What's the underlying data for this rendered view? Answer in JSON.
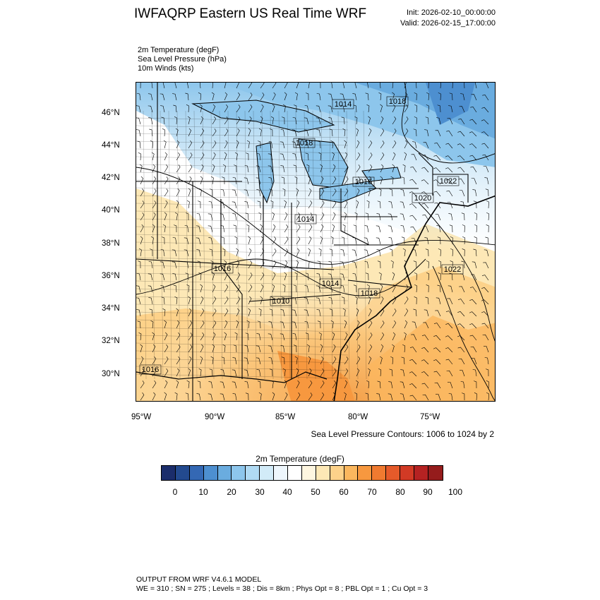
{
  "header": {
    "title": "IWFAQRP Eastern US Real Time WRF",
    "init": "Init: 2026-02-10_00:00:00",
    "valid": "Valid: 2026-02-15_17:00:00"
  },
  "fields": [
    "2m Temperature   (degF)",
    "Sea Level Pressure   (hPa)",
    "10m Winds   (kts)"
  ],
  "map": {
    "lat_labels": [
      "46°N",
      "44°N",
      "42°N",
      "40°N",
      "38°N",
      "36°N",
      "34°N",
      "32°N",
      "30°N"
    ],
    "lon_labels": [
      "95°W",
      "90°W",
      "85°W",
      "80°W",
      "75°W"
    ],
    "pressure_labels": [
      "1014",
      "1018",
      "1016",
      "1018",
      "1022",
      "1020",
      "1014",
      "1016",
      "1014",
      "1018",
      "1010",
      "1022",
      "1016"
    ],
    "contour_note": "Sea Level Pressure Contours: 1006 to 1024 by 2"
  },
  "colorbar": {
    "title": "2m Temperature  (degF)",
    "ticks": [
      "0",
      "10",
      "20",
      "30",
      "40",
      "50",
      "60",
      "70",
      "80",
      "90",
      "100"
    ],
    "colors": [
      "#1b2d6b",
      "#234a8f",
      "#3468b4",
      "#4d8fd0",
      "#6aacdf",
      "#8dc6ec",
      "#b0daf3",
      "#d2ebf8",
      "#eef6fc",
      "#ffffff",
      "#fef6e0",
      "#fde8b6",
      "#fdd28a",
      "#fbb75e",
      "#f7983f",
      "#f07a30",
      "#e55a2a",
      "#d23a25",
      "#b52222",
      "#951c1c"
    ]
  },
  "footer": {
    "line1": "OUTPUT FROM WRF V4.6.1 MODEL",
    "line2": "WE = 310 ; SN = 275 ; Levels = 38 ; Dis = 8km ; Phys Opt = 8 ; PBL Opt = 1 ; Cu Opt = 3"
  }
}
